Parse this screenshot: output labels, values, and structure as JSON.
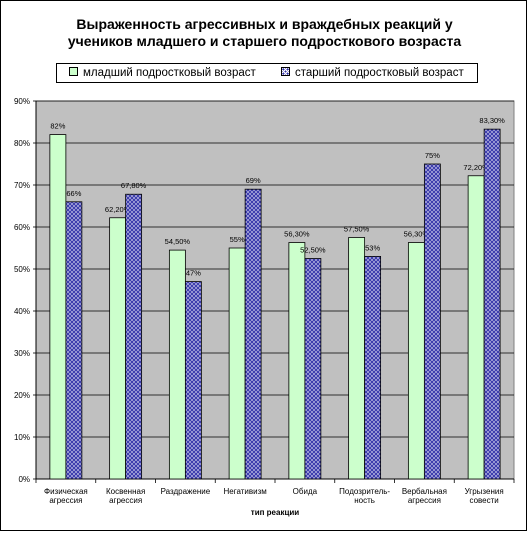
{
  "chart_data": {
    "type": "bar",
    "title": "Выраженность агрессивных и враждебных реакций у учеников младшего и старшего подросткового возраста",
    "title_lines": [
      "Выраженность агрессивных и враждебных реакций у",
      "учеников младшего и старшего подросткового возраста"
    ],
    "xlabel": "тип реакции",
    "ylabel": "",
    "ylim": [
      0,
      90
    ],
    "yticks": [
      "0%",
      "10%",
      "20%",
      "30%",
      "40%",
      "50%",
      "60%",
      "70%",
      "80%",
      "90%"
    ],
    "grid": true,
    "legend_position": "top",
    "plot_background": "#c0c0c0",
    "categories": [
      [
        "Физическая",
        "агрессия"
      ],
      [
        "Косвенная",
        "агрессия"
      ],
      [
        "Раздражение"
      ],
      [
        "Негативизм"
      ],
      [
        "Обида"
      ],
      [
        "Подозритель-",
        "ность"
      ],
      [
        "Вербальная",
        "агрессия"
      ],
      [
        "Угрызения",
        "совести"
      ]
    ],
    "series": [
      {
        "name": "младший подростковый возраст",
        "color": "#ccffcc",
        "values": [
          82,
          62.2,
          54.5,
          55,
          56.3,
          57.5,
          56.3,
          72.2
        ],
        "labels": [
          "82%",
          "62,20%",
          "54,50%",
          "55%",
          "56,30%",
          "57,50%",
          "56,30%",
          "72,20%"
        ]
      },
      {
        "name": "старший подростковый возраст",
        "color": "#3333aa",
        "pattern": "crosshatch",
        "values": [
          66,
          67.8,
          47,
          69,
          52.5,
          53,
          75,
          83.3
        ],
        "labels": [
          "66%",
          "67,80%",
          "47%",
          "69%",
          "52,50%",
          "53%",
          "75%",
          "83,30%"
        ]
      }
    ]
  }
}
